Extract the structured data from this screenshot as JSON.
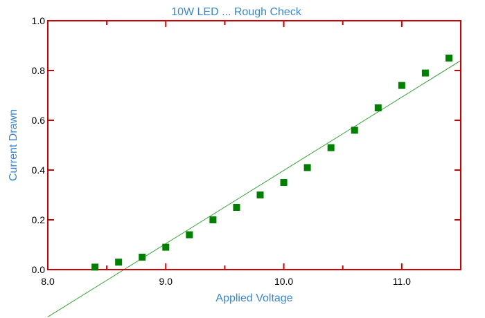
{
  "chart_data": {
    "type": "scatter",
    "title": "10W LED ... Rough Check",
    "xlabel": "Applied Voltage",
    "ylabel": "Current Drawn",
    "xlim": [
      8.0,
      11.5
    ],
    "ylim": [
      0.0,
      1.0
    ],
    "x_ticks": [
      "8.0",
      "9.0",
      "10.0",
      "11.0"
    ],
    "y_ticks": [
      "0.0",
      "0.2",
      "0.4",
      "0.6",
      "0.8",
      "1.0"
    ],
    "grid": false,
    "legend": "none",
    "series": [
      {
        "x": [
          8.4,
          8.6,
          8.8,
          9.0,
          9.2,
          9.4,
          9.6,
          9.8,
          10.0,
          10.2,
          10.4,
          10.6,
          10.8,
          11.0,
          11.2,
          11.4
        ],
        "y": [
          0.01,
          0.03,
          0.05,
          0.09,
          0.14,
          0.2,
          0.25,
          0.3,
          0.35,
          0.41,
          0.49,
          0.56,
          0.65,
          0.74,
          0.79,
          0.85
        ],
        "marker": "square",
        "color": "#008000"
      }
    ],
    "fit_line": {
      "color": "#33a033",
      "points": [
        [
          8.0,
          -0.19
        ],
        [
          11.5,
          0.84
        ]
      ]
    },
    "colors": {
      "frame": "#cc0000",
      "title": "#3a86c8",
      "axis_labels": "#3a86c8"
    }
  }
}
